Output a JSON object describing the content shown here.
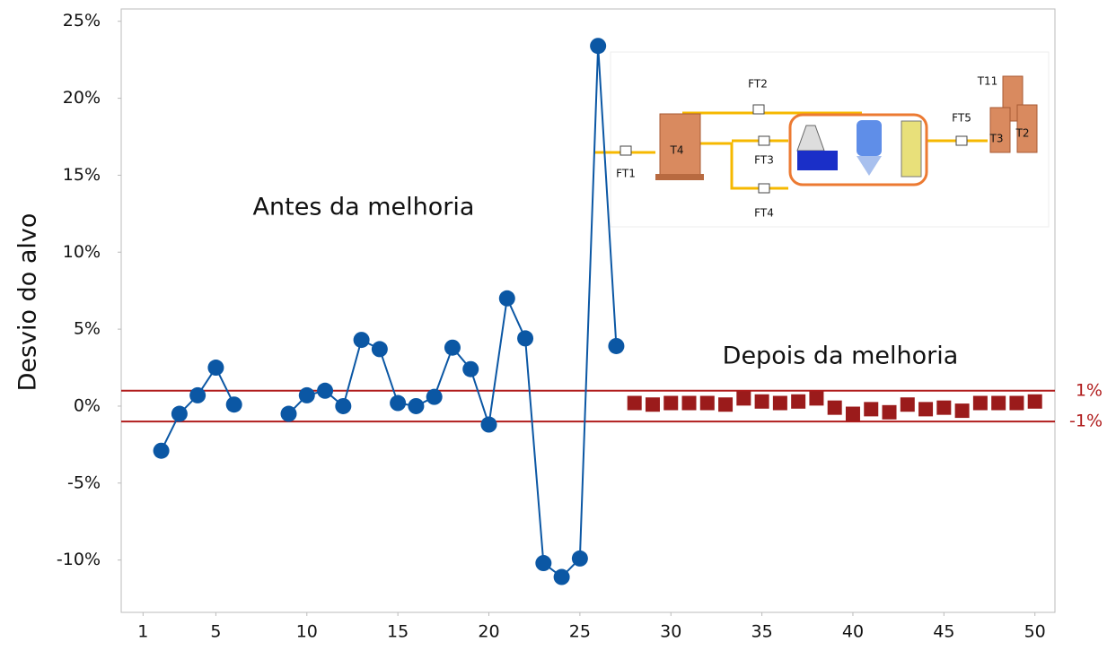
{
  "chart_data": {
    "type": "line",
    "y_label": "Desvio do alvo",
    "annotations": [
      "Antes da melhoria",
      "Depois da melhoria"
    ],
    "xlim": [
      -0.2,
      51.1
    ],
    "xticks": [
      1,
      5,
      10,
      15,
      20,
      25,
      30,
      35,
      40,
      45,
      50
    ],
    "ylim": [
      -13.4,
      25.8
    ],
    "yticks": [
      {
        "value": 25,
        "label": "25%"
      },
      {
        "value": 20,
        "label": "20%"
      },
      {
        "value": 15,
        "label": "15%"
      },
      {
        "value": 10,
        "label": "10%"
      },
      {
        "value": 5,
        "label": "5%"
      },
      {
        "value": 0,
        "label": "0%"
      },
      {
        "value": -5,
        "label": "-5%"
      },
      {
        "value": -10,
        "label": "-10%"
      }
    ],
    "reference_lines": [
      {
        "value": 1,
        "label": "1%"
      },
      {
        "value": -1,
        "label": "-1%"
      }
    ],
    "reference_color": "#b01c1c",
    "series": [
      {
        "color": "#0b57a4",
        "marker": "circle",
        "line": true,
        "x": [
          2,
          3,
          4,
          5,
          6,
          7,
          8,
          9,
          10,
          11,
          12,
          13,
          14,
          15,
          16,
          17,
          18,
          19,
          20,
          21,
          22,
          23,
          24,
          25,
          26,
          27
        ],
        "values": [
          -2.9,
          -0.5,
          0.7,
          2.5,
          0.1,
          null,
          null,
          -0.5,
          0.7,
          1.0,
          0.0,
          4.3,
          3.7,
          0.2,
          0.0,
          0.6,
          3.8,
          2.4,
          -1.2,
          7.0,
          4.4,
          -10.2,
          -11.1,
          -9.9,
          23.4,
          3.9
        ]
      },
      {
        "color": "#9b1b1b",
        "marker": "square",
        "line": false,
        "x": [
          28,
          29,
          30,
          31,
          32,
          33,
          34,
          35,
          36,
          37,
          38,
          39,
          40,
          41,
          42,
          43,
          44,
          45,
          46,
          47,
          48,
          49,
          50
        ],
        "values": [
          0.2,
          0.1,
          0.2,
          0.2,
          0.2,
          0.1,
          0.5,
          0.3,
          0.2,
          0.3,
          0.5,
          -0.1,
          -0.5,
          -0.2,
          -0.4,
          0.1,
          -0.2,
          -0.1,
          -0.3,
          0.2,
          0.2,
          0.2,
          0.3
        ]
      }
    ]
  },
  "inset": {
    "labels": [
      "FT1",
      "FT2",
      "FT3",
      "FT4",
      "FT5",
      "T4",
      "T11",
      "T3",
      "T2"
    ]
  }
}
